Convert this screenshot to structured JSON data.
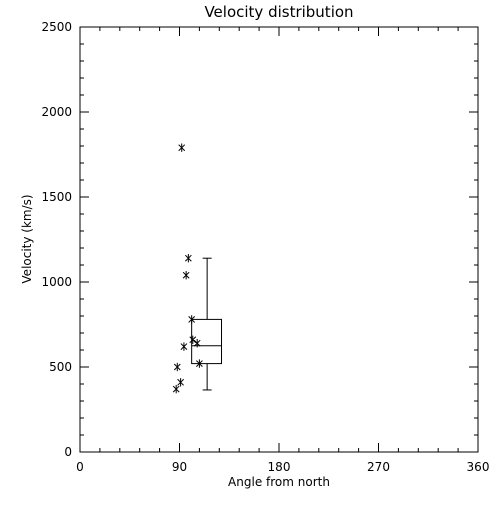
{
  "chart_data": {
    "type": "scatter",
    "title": "Velocity distribution",
    "xlabel": "Angle from north",
    "ylabel": "Velocity (km/s)",
    "xlim": [
      0,
      360
    ],
    "ylim": [
      0,
      2500
    ],
    "xticks": [
      "0",
      "90",
      "180",
      "270",
      "360"
    ],
    "yticks": [
      "0",
      "500",
      "1000",
      "1500",
      "2000",
      "2500"
    ],
    "grid": false,
    "marker": "asterisk",
    "points": [
      {
        "x": 92,
        "y": 1790
      },
      {
        "x": 98,
        "y": 1140
      },
      {
        "x": 96,
        "y": 1040
      },
      {
        "x": 101,
        "y": 780
      },
      {
        "x": 102,
        "y": 660
      },
      {
        "x": 106,
        "y": 640
      },
      {
        "x": 94,
        "y": 620
      },
      {
        "x": 108,
        "y": 520
      },
      {
        "x": 88,
        "y": 500
      },
      {
        "x": 91,
        "y": 410
      },
      {
        "x": 87,
        "y": 370
      }
    ],
    "boxplot": {
      "x_left": 101,
      "x_right": 128,
      "x_whisker": 115,
      "min": 365,
      "q1": 520,
      "median": 625,
      "q3": 780,
      "max": 1140
    }
  }
}
